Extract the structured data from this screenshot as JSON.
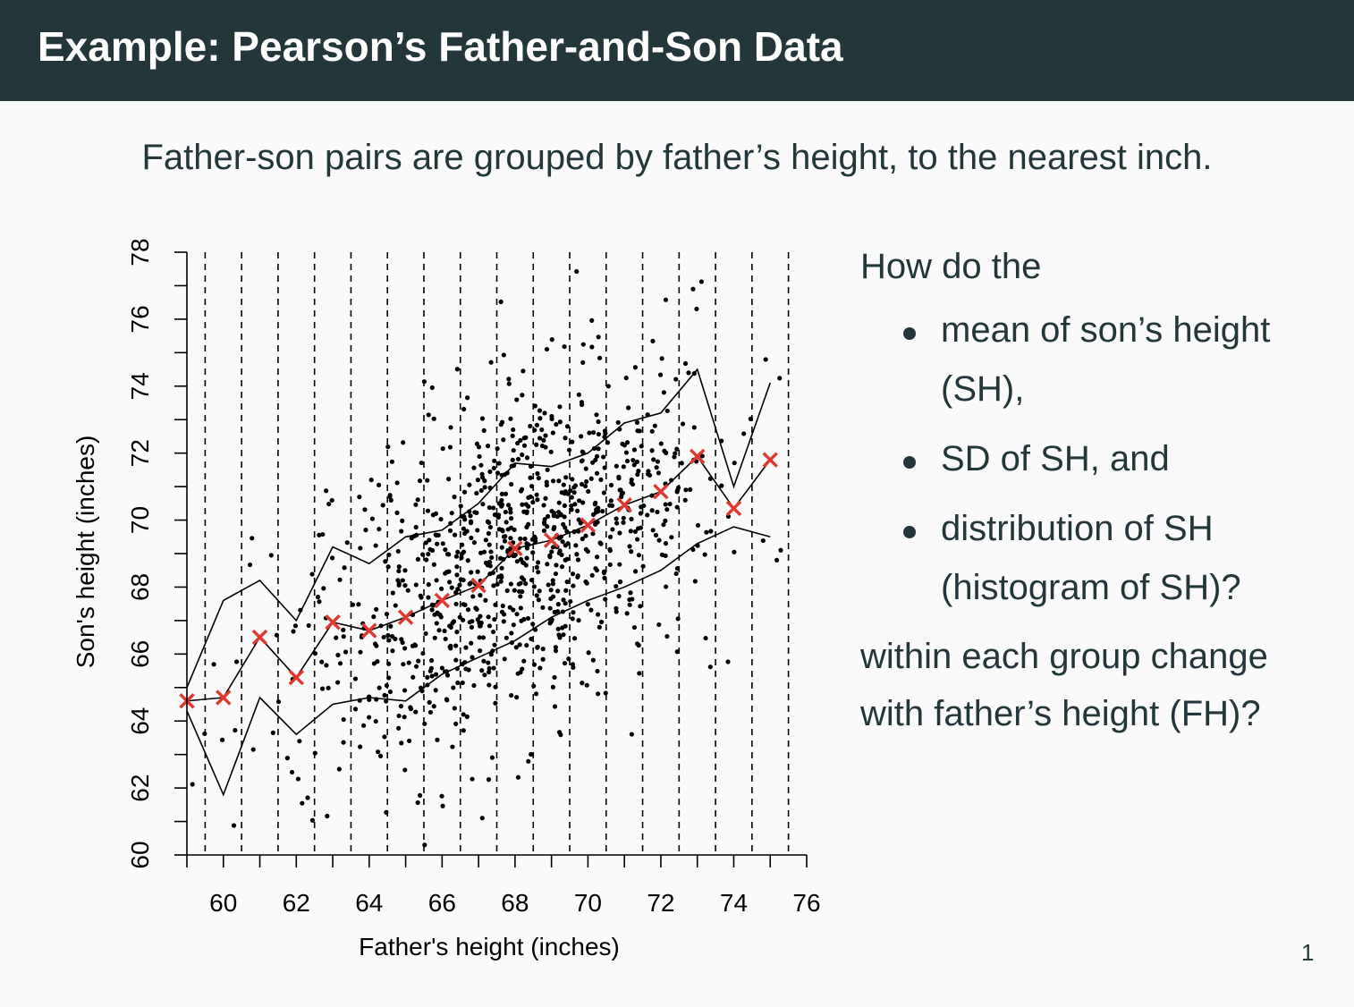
{
  "header": {
    "title": "Example: Pearson’s Father-and-Son Data"
  },
  "subtitle": "Father-son pairs are grouped by father’s height, to the nearest inch.",
  "side": {
    "intro": "How do the",
    "bullets": [
      "mean of son’s height (SH),",
      "SD of SH, and",
      "distribution of SH (histogram of SH)?"
    ],
    "outro": "within each group change with father’s height (FH)?"
  },
  "page_number": "1",
  "chart_data": {
    "type": "scatter",
    "title": "",
    "xlabel": "Father's height (inches)",
    "ylabel": "Son's height (inches)",
    "xlim": [
      59,
      76
    ],
    "ylim": [
      60,
      78
    ],
    "xticks": [
      60,
      62,
      64,
      66,
      68,
      70,
      72,
      74,
      76
    ],
    "yticks": [
      60,
      62,
      64,
      66,
      68,
      70,
      72,
      74,
      76,
      78
    ],
    "grid_x_dashed": [
      59.5,
      60.5,
      61.5,
      62.5,
      63.5,
      64.5,
      65.5,
      66.5,
      67.5,
      68.5,
      69.5,
      70.5,
      71.5,
      72.5,
      73.5,
      74.5,
      75.5
    ],
    "colors": {
      "points": "#000000",
      "means": "#e0382f",
      "lines": "#000000"
    },
    "group_means": {
      "x": [
        59,
        60,
        61,
        62,
        63,
        64,
        65,
        66,
        67,
        68,
        69,
        70,
        71,
        72,
        73,
        74,
        75
      ],
      "y": [
        64.6,
        64.7,
        66.5,
        65.3,
        66.95,
        66.7,
        67.1,
        67.6,
        68.05,
        69.15,
        69.4,
        69.85,
        70.45,
        70.85,
        71.9,
        70.35,
        71.8
      ]
    },
    "upper_band": {
      "x": [
        59,
        60,
        61,
        62,
        63,
        64,
        65,
        66,
        67,
        68,
        69,
        70,
        71,
        72,
        73,
        74,
        75
      ],
      "y": [
        65.0,
        67.6,
        68.2,
        67.0,
        69.2,
        68.7,
        69.5,
        69.7,
        70.5,
        71.7,
        71.6,
        72.0,
        72.9,
        73.2,
        74.5,
        71.0,
        74.1
      ]
    },
    "lower_band": {
      "x": [
        59,
        60,
        61,
        62,
        63,
        64,
        65,
        66,
        67,
        68,
        69,
        70,
        71,
        72,
        73,
        74,
        75
      ],
      "y": [
        64.3,
        61.8,
        64.7,
        63.6,
        64.5,
        64.7,
        64.6,
        65.4,
        65.9,
        66.4,
        67.1,
        67.6,
        68.0,
        68.5,
        69.3,
        69.8,
        69.5
      ]
    }
  }
}
